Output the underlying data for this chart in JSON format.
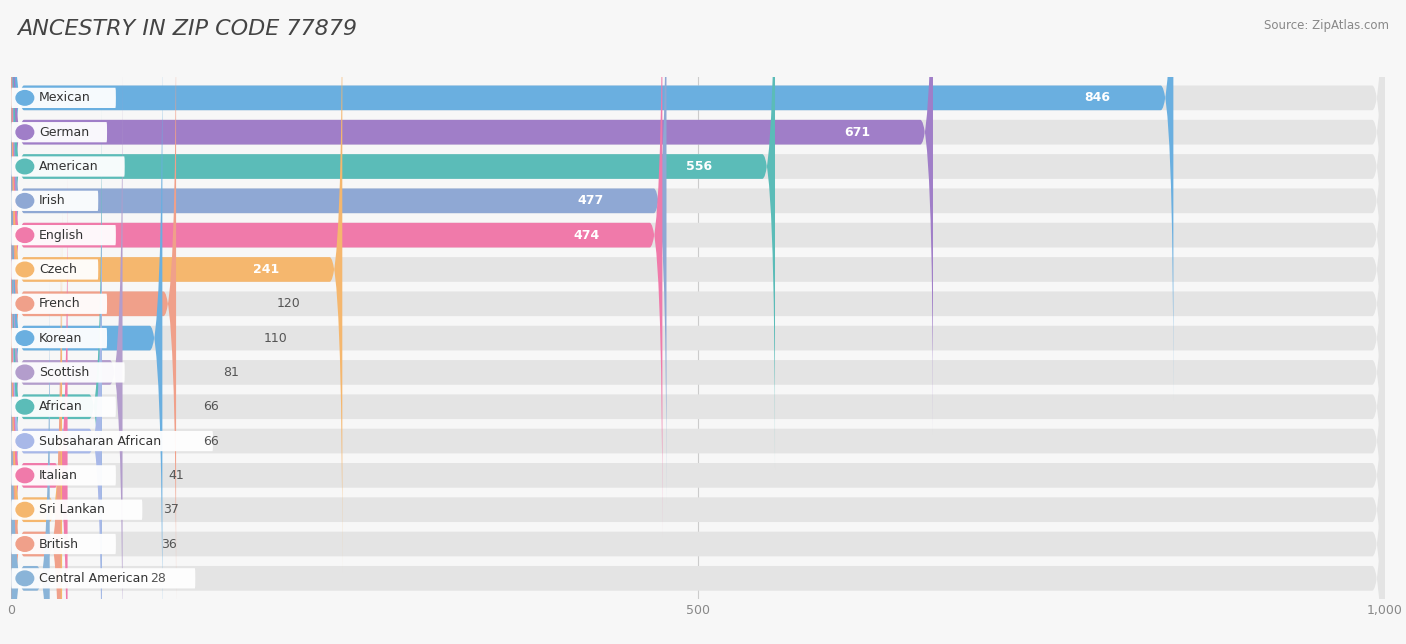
{
  "title": "ANCESTRY IN ZIP CODE 77879",
  "source": "Source: ZipAtlas.com",
  "categories": [
    "Mexican",
    "German",
    "American",
    "Irish",
    "English",
    "Czech",
    "French",
    "Korean",
    "Scottish",
    "African",
    "Subsaharan African",
    "Italian",
    "Sri Lankan",
    "British",
    "Central American"
  ],
  "values": [
    846,
    671,
    556,
    477,
    474,
    241,
    120,
    110,
    81,
    66,
    66,
    41,
    37,
    36,
    28
  ],
  "bar_colors": [
    "#6aafe0",
    "#a07ec8",
    "#5bbcb8",
    "#8fa8d4",
    "#f07aaa",
    "#f5b76e",
    "#f0a08a",
    "#6aafe0",
    "#b39dcc",
    "#5bbcb8",
    "#a8b8e8",
    "#f07aaa",
    "#f5b76e",
    "#f0a08a",
    "#8ab4d8"
  ],
  "xlim": [
    0,
    1000
  ],
  "xticks": [
    0,
    500,
    1000
  ],
  "background_color": "#f7f7f7",
  "bar_bg_color": "#e4e4e4",
  "title_fontsize": 16,
  "bar_height": 0.72
}
